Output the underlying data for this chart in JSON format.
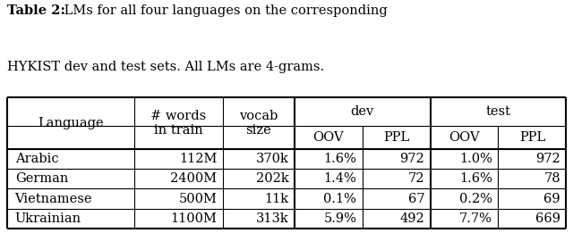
{
  "title_bold": "Table 2:",
  "title_rest": " LMs for all four languages on the corresponding\nHYKIST dev and test sets. All LMs are 4-grams.",
  "rows": [
    [
      "Arabic",
      "112M",
      "370k",
      "1.6%",
      "972",
      "1.0%",
      "972"
    ],
    [
      "German",
      "2400M",
      "202k",
      "1.4%",
      "72",
      "1.6%",
      "78"
    ],
    [
      "Vietnamese",
      "500M",
      "11k",
      "0.1%",
      "67",
      "0.2%",
      "69"
    ],
    [
      "Ukrainian",
      "1100M",
      "313k",
      "5.9%",
      "492",
      "7.7%",
      "669"
    ]
  ],
  "col_widths": [
    1.6,
    1.1,
    0.9,
    0.85,
    0.85,
    0.85,
    0.85
  ],
  "background_color": "#ffffff",
  "font_size": 10.5,
  "title_font_size": 10.5,
  "lw_outer": 1.5,
  "lw_inner": 0.8,
  "lw_thick_sep": 1.5
}
